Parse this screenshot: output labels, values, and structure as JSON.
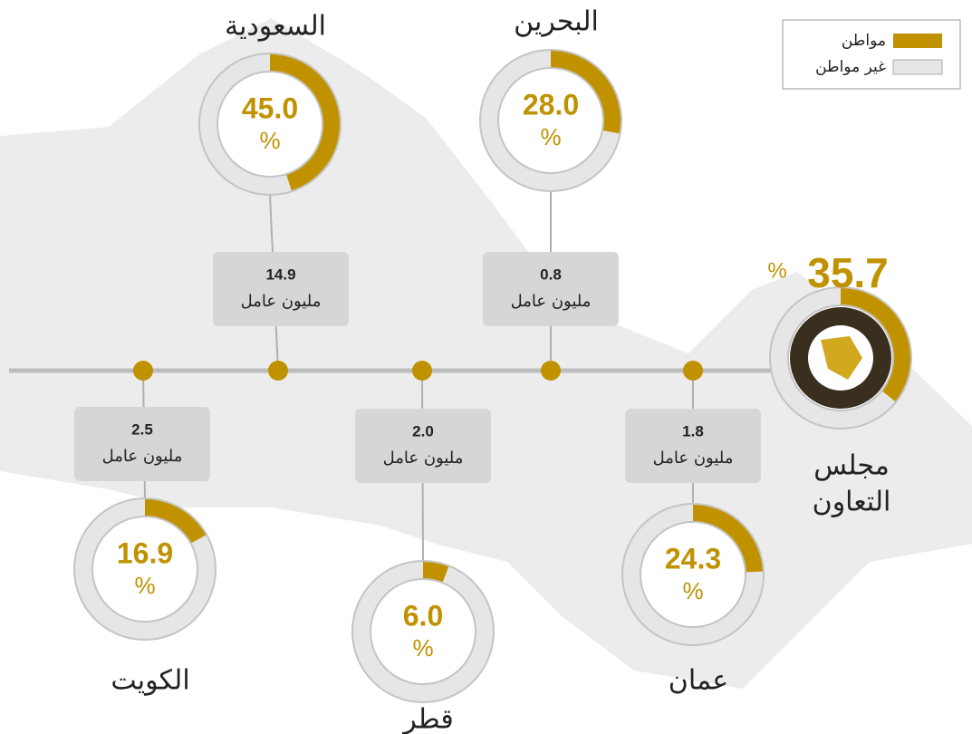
{
  "chart_data": {
    "type": "donut",
    "legend": [
      {
        "name": "مواطن",
        "color": "#c09200"
      },
      {
        "name": "غير مواطن",
        "color": "#e6e6e6"
      }
    ],
    "categories": [
      "السعودية",
      "البحرين",
      "الكويت",
      "قطر",
      "عمان"
    ],
    "values": [
      45,
      28,
      16.9,
      6,
      24.3
    ],
    "value_labels": [
      "45.0",
      "28.0",
      "16.9",
      "6.0",
      "24.3"
    ],
    "unit": "%",
    "workers": [
      14.9,
      0.8,
      2.5,
      2,
      1.8
    ],
    "workers_labels": [
      "14.9",
      "0.8",
      "2.5",
      "2.0",
      "1.8"
    ],
    "workers_unit": "مليون عامل",
    "total": {
      "name": [
        "مجلس",
        "التعاون"
      ],
      "value": 35.7
    }
  }
}
